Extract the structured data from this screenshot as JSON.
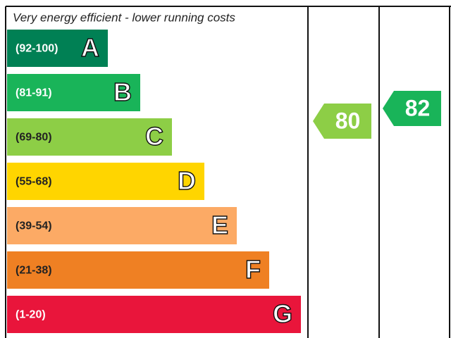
{
  "header": "Very energy efficient - lower running costs",
  "bands": [
    {
      "range": "(92-100)",
      "letter": "A",
      "color": "#008054",
      "text_color": "#ffffff"
    },
    {
      "range": "(81-91)",
      "letter": "B",
      "color": "#19b459",
      "text_color": "#ffffff"
    },
    {
      "range": "(69-80)",
      "letter": "C",
      "color": "#8dce46",
      "text_color": "#222222"
    },
    {
      "range": "(55-68)",
      "letter": "D",
      "color": "#ffd500",
      "text_color": "#222222"
    },
    {
      "range": "(39-54)",
      "letter": "E",
      "color": "#fcaa65",
      "text_color": "#222222"
    },
    {
      "range": "(21-38)",
      "letter": "F",
      "color": "#ef8023",
      "text_color": "#222222"
    },
    {
      "range": "(1-20)",
      "letter": "G",
      "color": "#e9153b",
      "text_color": "#ffffff"
    }
  ],
  "current": "80",
  "potential": "82"
}
